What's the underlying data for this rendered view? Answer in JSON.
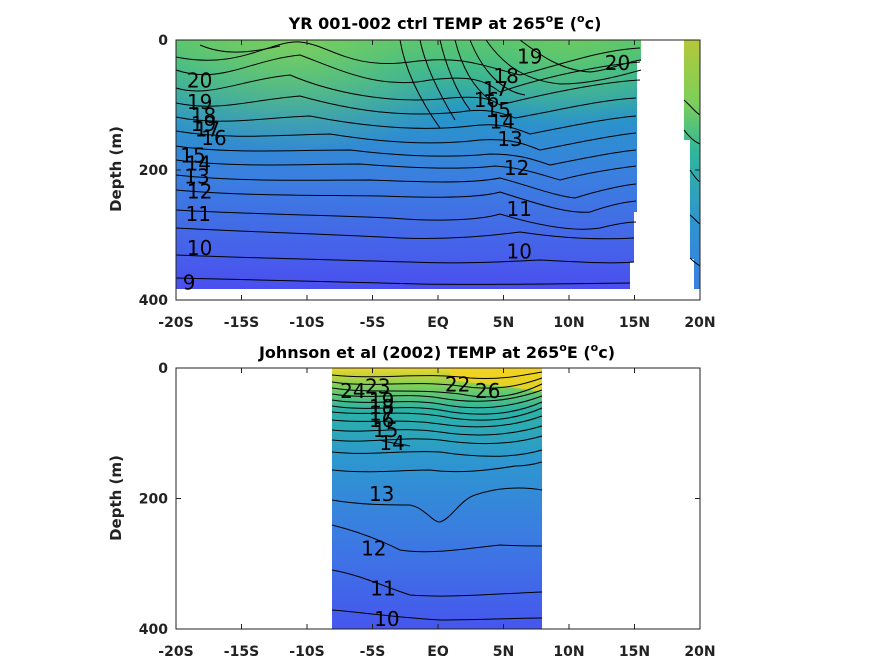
{
  "chart_data": [
    {
      "type": "contour",
      "title": "YR 001-002 ctrl TEMP at 265",
      "title_suffix": "E (",
      "title_unit_end": "c)",
      "title_degree": "o",
      "ylabel": "Depth (m)",
      "xlim": [
        -20,
        20
      ],
      "ylim": [
        400,
        0
      ],
      "x_ticks": [
        {
          "v": -20,
          "label": "-20S"
        },
        {
          "v": -15,
          "label": "-15S"
        },
        {
          "v": -10,
          "label": "-10S"
        },
        {
          "v": -5,
          "label": "-5S"
        },
        {
          "v": 0,
          "label": "EQ"
        },
        {
          "v": 5,
          "label": "5N"
        },
        {
          "v": 10,
          "label": "10N"
        },
        {
          "v": 15,
          "label": "15N"
        },
        {
          "v": 20,
          "label": "20N"
        }
      ],
      "y_ticks": [
        {
          "v": 0,
          "label": "0"
        },
        {
          "v": 200,
          "label": "200"
        },
        {
          "v": 400,
          "label": "400"
        }
      ],
      "contour_labels": [
        {
          "text": "20",
          "x": -18.2,
          "y": 62
        },
        {
          "text": "19",
          "x": -18.2,
          "y": 95
        },
        {
          "text": "18",
          "x": -17.9,
          "y": 116
        },
        {
          "text": "19",
          "x": -17.9,
          "y": 129
        },
        {
          "text": "16",
          "x": -17.1,
          "y": 151
        },
        {
          "text": "17",
          "x": -17.6,
          "y": 138
        },
        {
          "text": "15",
          "x": -18.7,
          "y": 178
        },
        {
          "text": "14",
          "x": -18.3,
          "y": 190
        },
        {
          "text": "13",
          "x": -18.4,
          "y": 210
        },
        {
          "text": "12",
          "x": -18.2,
          "y": 233
        },
        {
          "text": "11",
          "x": -18.3,
          "y": 268
        },
        {
          "text": "10",
          "x": -18.2,
          "y": 320
        },
        {
          "text": "9",
          "x": -19.0,
          "y": 373
        },
        {
          "text": "19",
          "x": 7.0,
          "y": 25
        },
        {
          "text": "20",
          "x": 13.7,
          "y": 35
        },
        {
          "text": "18",
          "x": 5.2,
          "y": 55
        },
        {
          "text": "17",
          "x": 4.4,
          "y": 75
        },
        {
          "text": "16",
          "x": 3.7,
          "y": 92
        },
        {
          "text": "15",
          "x": 4.6,
          "y": 108
        },
        {
          "text": "14",
          "x": 4.9,
          "y": 125
        },
        {
          "text": "13",
          "x": 5.5,
          "y": 152
        },
        {
          "text": "12",
          "x": 6.0,
          "y": 197
        },
        {
          "text": "11",
          "x": 6.2,
          "y": 260
        },
        {
          "text": "10",
          "x": 6.2,
          "y": 325
        }
      ]
    },
    {
      "type": "contour",
      "title": "Johnson et al (2002) TEMP at 265",
      "title_suffix": "E (",
      "title_unit_end": "c)",
      "title_degree": "o",
      "ylabel": "Depth (m)",
      "xlim": [
        -20,
        20
      ],
      "ylim": [
        400,
        0
      ],
      "x_ticks": [
        {
          "v": -20,
          "label": "-20S"
        },
        {
          "v": -15,
          "label": "-15S"
        },
        {
          "v": -10,
          "label": "-10S"
        },
        {
          "v": -5,
          "label": "-5S"
        },
        {
          "v": 0,
          "label": "EQ"
        },
        {
          "v": 5,
          "label": "5N"
        },
        {
          "v": 10,
          "label": "10N"
        },
        {
          "v": 15,
          "label": "15N"
        },
        {
          "v": 20,
          "label": "20N"
        }
      ],
      "y_ticks": [
        {
          "v": 0,
          "label": "0"
        },
        {
          "v": 200,
          "label": "200"
        },
        {
          "v": 400,
          "label": "400"
        }
      ],
      "contour_labels": [
        {
          "text": "24",
          "x": -6.5,
          "y": 35
        },
        {
          "text": "23",
          "x": -4.6,
          "y": 28
        },
        {
          "text": "19",
          "x": -4.3,
          "y": 50
        },
        {
          "text": "18",
          "x": -4.3,
          "y": 60
        },
        {
          "text": "17",
          "x": -4.3,
          "y": 70
        },
        {
          "text": "16",
          "x": -4.3,
          "y": 80
        },
        {
          "text": "15",
          "x": -4.0,
          "y": 95
        },
        {
          "text": "14",
          "x": -3.5,
          "y": 115
        },
        {
          "text": "22",
          "x": 1.5,
          "y": 25
        },
        {
          "text": "26",
          "x": 3.8,
          "y": 35
        },
        {
          "text": "13",
          "x": -4.3,
          "y": 193
        },
        {
          "text": "12",
          "x": -4.9,
          "y": 277
        },
        {
          "text": "11",
          "x": -4.2,
          "y": 338
        },
        {
          "text": "10",
          "x": -3.9,
          "y": 385
        }
      ]
    }
  ]
}
